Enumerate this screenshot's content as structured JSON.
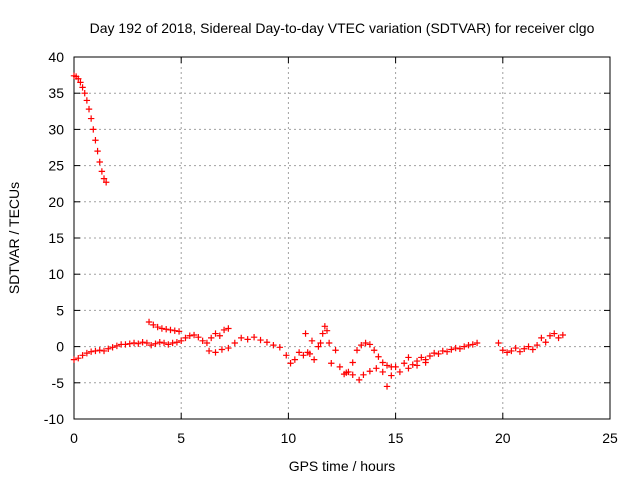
{
  "chart_data": {
    "type": "scatter",
    "title": "Day 192 of 2018, Sidereal Day-to-day VTEC variation (SDTVAR) for receiver clgo",
    "xlabel": "GPS time / hours",
    "ylabel": "SDTVAR / TECUs",
    "xlim": [
      0,
      25
    ],
    "ylim": [
      -10,
      40
    ],
    "xticks": [
      0,
      5,
      10,
      15,
      20,
      25
    ],
    "yticks": [
      -10,
      -5,
      0,
      5,
      10,
      15,
      20,
      25,
      30,
      35,
      40
    ],
    "grid": true,
    "marker": "+",
    "color": "#ff0000",
    "series": [
      {
        "name": "SDTVAR",
        "points": [
          [
            0.0,
            37.4
          ],
          [
            0.1,
            37.3
          ],
          [
            0.2,
            37.0
          ],
          [
            0.3,
            36.5
          ],
          [
            0.4,
            35.8
          ],
          [
            0.5,
            35.0
          ],
          [
            0.6,
            34.0
          ],
          [
            0.7,
            32.8
          ],
          [
            0.8,
            31.5
          ],
          [
            0.9,
            30.0
          ],
          [
            1.0,
            28.5
          ],
          [
            1.1,
            27.0
          ],
          [
            1.2,
            25.5
          ],
          [
            1.3,
            24.2
          ],
          [
            1.4,
            23.2
          ],
          [
            1.5,
            22.7
          ],
          [
            0.0,
            -1.8
          ],
          [
            0.2,
            -1.6
          ],
          [
            0.4,
            -1.2
          ],
          [
            0.6,
            -0.9
          ],
          [
            0.8,
            -0.7
          ],
          [
            1.0,
            -0.6
          ],
          [
            1.2,
            -0.5
          ],
          [
            1.4,
            -0.6
          ],
          [
            1.6,
            -0.3
          ],
          [
            1.8,
            -0.1
          ],
          [
            2.0,
            0.1
          ],
          [
            2.2,
            0.3
          ],
          [
            2.4,
            0.3
          ],
          [
            2.6,
            0.4
          ],
          [
            2.8,
            0.5
          ],
          [
            3.0,
            0.4
          ],
          [
            3.2,
            0.6
          ],
          [
            3.4,
            0.5
          ],
          [
            3.6,
            0.2
          ],
          [
            3.8,
            0.4
          ],
          [
            4.0,
            0.6
          ],
          [
            4.2,
            0.5
          ],
          [
            4.4,
            0.3
          ],
          [
            4.6,
            0.5
          ],
          [
            4.8,
            0.6
          ],
          [
            3.5,
            3.4
          ],
          [
            3.7,
            3.0
          ],
          [
            3.9,
            2.7
          ],
          [
            4.1,
            2.5
          ],
          [
            4.3,
            2.4
          ],
          [
            4.5,
            2.3
          ],
          [
            4.7,
            2.2
          ],
          [
            4.9,
            2.1
          ],
          [
            5.0,
            0.8
          ],
          [
            5.2,
            1.2
          ],
          [
            5.4,
            1.5
          ],
          [
            5.6,
            1.6
          ],
          [
            5.8,
            1.3
          ],
          [
            6.0,
            0.8
          ],
          [
            6.2,
            0.5
          ],
          [
            6.4,
            1.2
          ],
          [
            6.6,
            1.8
          ],
          [
            6.8,
            1.5
          ],
          [
            7.0,
            2.3
          ],
          [
            7.2,
            2.5
          ],
          [
            6.3,
            -0.6
          ],
          [
            6.6,
            -0.8
          ],
          [
            6.9,
            -0.4
          ],
          [
            7.2,
            -0.2
          ],
          [
            7.5,
            0.5
          ],
          [
            7.8,
            1.2
          ],
          [
            8.1,
            1.0
          ],
          [
            8.4,
            1.3
          ],
          [
            8.7,
            0.9
          ],
          [
            9.0,
            0.6
          ],
          [
            9.3,
            0.2
          ],
          [
            9.6,
            -0.1
          ],
          [
            9.9,
            -1.2
          ],
          [
            10.1,
            -2.3
          ],
          [
            10.3,
            -1.8
          ],
          [
            10.5,
            -0.8
          ],
          [
            10.7,
            -1.2
          ],
          [
            10.9,
            -0.8
          ],
          [
            11.0,
            -1.0
          ],
          [
            11.2,
            -1.8
          ],
          [
            11.4,
            0.0
          ],
          [
            11.6,
            1.8
          ],
          [
            11.7,
            2.8
          ],
          [
            11.8,
            2.2
          ],
          [
            11.9,
            0.5
          ],
          [
            12.0,
            -2.3
          ],
          [
            12.2,
            -0.5
          ],
          [
            11.1,
            0.8
          ],
          [
            10.8,
            1.8
          ],
          [
            11.5,
            0.5
          ],
          [
            12.4,
            -2.8
          ],
          [
            12.6,
            -3.8
          ],
          [
            12.8,
            -3.5
          ],
          [
            13.0,
            -2.2
          ],
          [
            13.2,
            -0.5
          ],
          [
            13.4,
            0.2
          ],
          [
            13.6,
            0.5
          ],
          [
            13.8,
            0.3
          ],
          [
            14.0,
            -0.5
          ],
          [
            14.2,
            -1.4
          ],
          [
            14.4,
            -2.2
          ],
          [
            14.6,
            -2.6
          ],
          [
            14.8,
            -2.8
          ],
          [
            12.7,
            -3.6
          ],
          [
            13.0,
            -3.9
          ],
          [
            13.3,
            -4.6
          ],
          [
            13.5,
            -3.9
          ],
          [
            13.8,
            -3.4
          ],
          [
            14.1,
            -3.0
          ],
          [
            14.4,
            -3.5
          ],
          [
            14.6,
            -5.5
          ],
          [
            14.8,
            -4.0
          ],
          [
            15.0,
            -2.8
          ],
          [
            15.2,
            -3.5
          ],
          [
            15.4,
            -2.3
          ],
          [
            15.6,
            -1.5
          ],
          [
            15.8,
            -2.5
          ],
          [
            16.0,
            -2.0
          ],
          [
            16.2,
            -1.5
          ],
          [
            16.4,
            -1.8
          ],
          [
            16.6,
            -1.3
          ],
          [
            16.8,
            -0.9
          ],
          [
            17.0,
            -1.0
          ],
          [
            17.2,
            -0.6
          ],
          [
            17.4,
            -0.7
          ],
          [
            17.6,
            -0.4
          ],
          [
            17.8,
            -0.2
          ],
          [
            18.0,
            -0.3
          ],
          [
            18.2,
            0.0
          ],
          [
            18.4,
            0.2
          ],
          [
            18.6,
            0.3
          ],
          [
            18.8,
            0.5
          ],
          [
            15.6,
            -3.0
          ],
          [
            16.0,
            -2.6
          ],
          [
            16.4,
            -2.2
          ],
          [
            19.8,
            0.5
          ],
          [
            20.0,
            -0.5
          ],
          [
            20.2,
            -0.8
          ],
          [
            20.4,
            -0.6
          ],
          [
            20.6,
            -0.2
          ],
          [
            20.8,
            -0.7
          ],
          [
            21.0,
            -0.3
          ],
          [
            21.2,
            0.0
          ],
          [
            21.4,
            -0.4
          ],
          [
            21.6,
            0.2
          ],
          [
            21.8,
            1.2
          ],
          [
            22.0,
            0.6
          ],
          [
            22.2,
            1.5
          ],
          [
            22.4,
            1.8
          ],
          [
            22.6,
            1.2
          ],
          [
            22.8,
            1.6
          ]
        ]
      }
    ]
  }
}
